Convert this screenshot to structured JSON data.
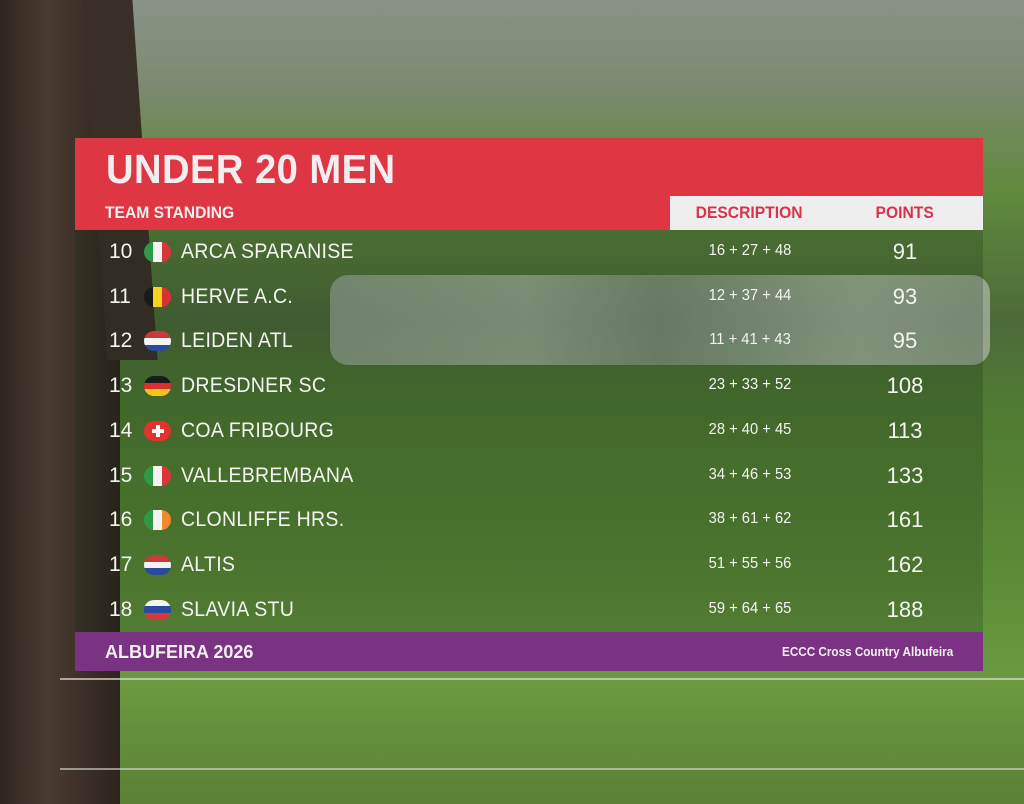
{
  "header": {
    "title": "UNDER 20 MEN",
    "subtitle": "TEAM STANDING",
    "col_description": "DESCRIPTION",
    "col_points": "POINTS"
  },
  "rows": [
    {
      "rank": "10",
      "flag": "italy-flag-icon",
      "team": "ARCA SPARANISE",
      "description": "16 + 27 + 48",
      "points": "91"
    },
    {
      "rank": "11",
      "flag": "belgium-flag-icon",
      "team": "HERVE A.C.",
      "description": "12 + 37 + 44",
      "points": "93"
    },
    {
      "rank": "12",
      "flag": "netherlands-flag-icon",
      "team": "LEIDEN ATL",
      "description": "11 + 41 + 43",
      "points": "95"
    },
    {
      "rank": "13",
      "flag": "germany-flag-icon",
      "team": "DRESDNER SC",
      "description": "23 + 33 + 52",
      "points": "108"
    },
    {
      "rank": "14",
      "flag": "switzerland-flag-icon",
      "team": "COA FRIBOURG",
      "description": "28 + 40 + 45",
      "points": "113"
    },
    {
      "rank": "15",
      "flag": "italy-flag-icon",
      "team": "VALLEBREMBANA",
      "description": "34 + 46 + 53",
      "points": "133"
    },
    {
      "rank": "16",
      "flag": "ireland-flag-icon",
      "team": "CLONLIFFE HRS.",
      "description": "38 + 61 + 62",
      "points": "161"
    },
    {
      "rank": "17",
      "flag": "netherlands-flag-icon",
      "team": "ALTIS",
      "description": "51 + 55 + 56",
      "points": "162"
    },
    {
      "rank": "18",
      "flag": "slovakia-flag-icon",
      "team": "SLAVIA STU",
      "description": "59 + 64 + 65",
      "points": "188"
    }
  ],
  "footer": {
    "left": "ALBUFEIRA 2026",
    "right": "ECCC Cross Country Albufeira"
  },
  "colors": {
    "header_red": "#de3642",
    "footer_purple": "#7a3382",
    "column_header_text": "#d8334a"
  }
}
